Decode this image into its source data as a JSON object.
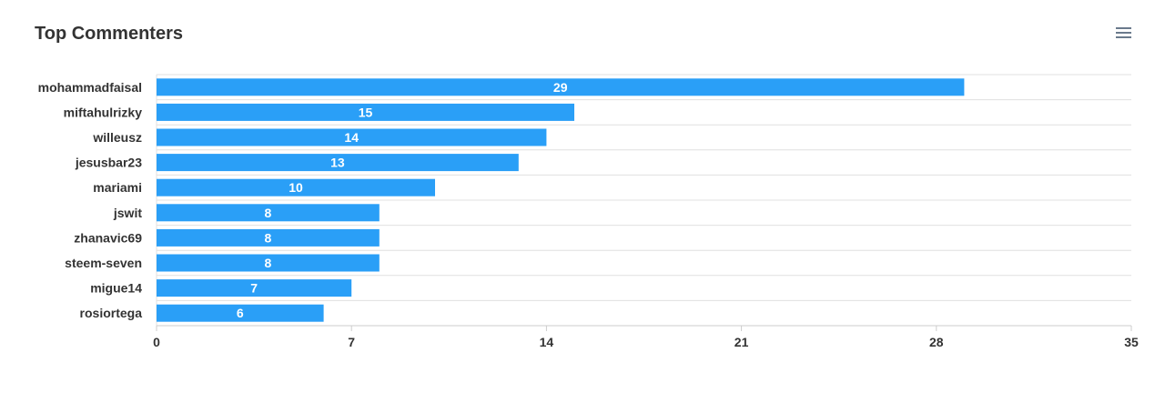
{
  "header": {
    "title": "Top Commenters",
    "menu_icon": "hamburger-menu-icon"
  },
  "colors": {
    "bar": "#2a9ff7",
    "grid": "#e0e0e0",
    "axis_text": "#333333",
    "data_label": "#ffffff"
  },
  "chart_data": {
    "type": "bar",
    "orientation": "horizontal",
    "title": "Top Commenters",
    "categories": [
      "mohammadfaisal",
      "miftahulrizky",
      "willeusz",
      "jesusbar23",
      "mariami",
      "jswit",
      "zhanavic69",
      "steem-seven",
      "migue14",
      "rosiortega"
    ],
    "values": [
      29,
      15,
      14,
      13,
      10,
      8,
      8,
      8,
      7,
      6
    ],
    "xlim": [
      0,
      35
    ],
    "x_ticks": [
      0,
      7,
      14,
      21,
      28,
      35
    ],
    "xlabel": "",
    "ylabel": "",
    "grid": true,
    "data_labels": true
  }
}
